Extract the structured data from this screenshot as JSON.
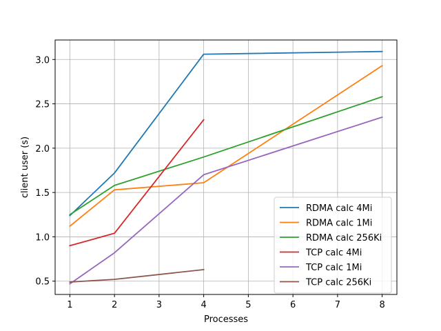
{
  "chart_data": {
    "type": "line",
    "title": "",
    "xlabel": "Processes",
    "ylabel": "client user (s)",
    "xlim": [
      0.67,
      8.33
    ],
    "ylim": [
      0.35,
      3.22
    ],
    "xticks": [
      1,
      2,
      3,
      4,
      5,
      6,
      7,
      8
    ],
    "yticks": [
      0.5,
      1.0,
      1.5,
      2.0,
      2.5,
      3.0
    ],
    "ytick_labels": [
      "0.5",
      "1.0",
      "1.5",
      "2.0",
      "2.5",
      "3.0"
    ],
    "grid": true,
    "legend_position": "lower-right",
    "series": [
      {
        "name": "RDMA calc 4Mi",
        "color": "#1f77b4",
        "x": [
          1,
          2,
          4,
          8
        ],
        "y": [
          1.24,
          1.72,
          3.06,
          3.09
        ]
      },
      {
        "name": "RDMA calc 1Mi",
        "color": "#ff7f0e",
        "x": [
          1,
          2,
          4,
          8
        ],
        "y": [
          1.12,
          1.53,
          1.61,
          2.93
        ]
      },
      {
        "name": "RDMA calc 256Ki",
        "color": "#2ca02c",
        "x": [
          1,
          2,
          4,
          8
        ],
        "y": [
          1.25,
          1.58,
          1.9,
          2.58
        ]
      },
      {
        "name": "TCP calc 4Mi",
        "color": "#d62728",
        "x": [
          1,
          2,
          4
        ],
        "y": [
          0.9,
          1.04,
          2.32
        ]
      },
      {
        "name": "TCP calc 1Mi",
        "color": "#9467bd",
        "x": [
          1,
          2,
          4,
          8
        ],
        "y": [
          0.47,
          0.82,
          1.7,
          2.35
        ]
      },
      {
        "name": "TCP calc 256Ki",
        "color": "#8c564b",
        "x": [
          1,
          2,
          4
        ],
        "y": [
          0.49,
          0.52,
          0.63
        ]
      }
    ]
  }
}
